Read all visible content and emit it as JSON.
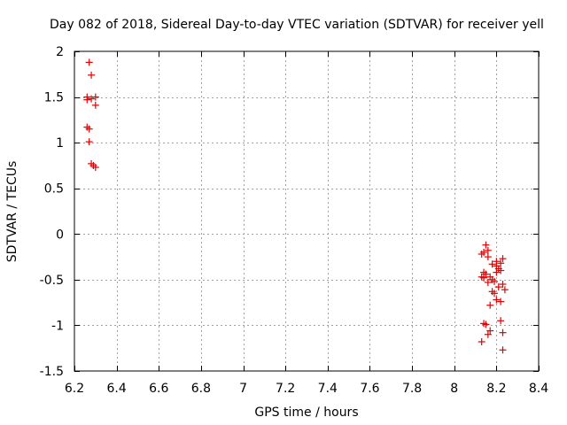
{
  "chart_data": {
    "type": "scatter",
    "title": "Day 082 of 2018, Sidereal Day-to-day VTEC variation (SDTVAR) for receiver yell",
    "xlabel": "GPS time / hours",
    "ylabel": "SDTVAR / TECUs",
    "xlim": [
      6.2,
      8.4
    ],
    "ylim": [
      -1.5,
      2
    ],
    "xticks": [
      6.2,
      6.4,
      6.6,
      6.8,
      7,
      7.2,
      7.4,
      7.6,
      7.8,
      8,
      8.2,
      8.4
    ],
    "xtick_labels": [
      "6.2",
      "6.4",
      "6.6",
      "6.8",
      "7",
      "7.2",
      "7.4",
      "7.6",
      "7.8",
      "8",
      "8.2",
      "8.4"
    ],
    "yticks": [
      -1.5,
      -1,
      -0.5,
      0,
      0.5,
      1,
      1.5,
      2
    ],
    "ytick_labels": [
      "-1.5",
      "-1",
      "-0.5",
      "0",
      "0.5",
      "1",
      "1.5",
      "2"
    ],
    "grid": true,
    "marker": "+",
    "color": "#e00000",
    "series": [
      {
        "name": "SDTVAR",
        "points": [
          [
            6.27,
            1.88
          ],
          [
            6.28,
            1.74
          ],
          [
            6.26,
            1.5
          ],
          [
            6.26,
            1.47
          ],
          [
            6.28,
            1.48
          ],
          [
            6.3,
            1.5
          ],
          [
            6.3,
            1.41
          ],
          [
            6.26,
            1.17
          ],
          [
            6.27,
            1.15
          ],
          [
            6.27,
            1.01
          ],
          [
            6.28,
            0.77
          ],
          [
            6.29,
            0.75
          ],
          [
            6.3,
            0.73
          ],
          [
            8.15,
            -0.12
          ],
          [
            8.14,
            -0.2
          ],
          [
            8.13,
            -0.22
          ],
          [
            8.16,
            -0.25
          ],
          [
            8.16,
            -0.18
          ],
          [
            8.18,
            -0.33
          ],
          [
            8.2,
            -0.3
          ],
          [
            8.23,
            -0.27
          ],
          [
            8.22,
            -0.32
          ],
          [
            8.2,
            -0.35
          ],
          [
            8.21,
            -0.38
          ],
          [
            8.22,
            -0.4
          ],
          [
            8.2,
            -0.42
          ],
          [
            8.14,
            -0.42
          ],
          [
            8.15,
            -0.44
          ],
          [
            8.13,
            -0.47
          ],
          [
            8.14,
            -0.48
          ],
          [
            8.17,
            -0.47
          ],
          [
            8.18,
            -0.5
          ],
          [
            8.19,
            -0.52
          ],
          [
            8.16,
            -0.53
          ],
          [
            8.23,
            -0.55
          ],
          [
            8.21,
            -0.58
          ],
          [
            8.24,
            -0.61
          ],
          [
            8.19,
            -0.65
          ],
          [
            8.18,
            -0.63
          ],
          [
            8.2,
            -0.72
          ],
          [
            8.22,
            -0.74
          ],
          [
            8.17,
            -0.78
          ],
          [
            8.14,
            -0.98
          ],
          [
            8.15,
            -0.99
          ],
          [
            8.22,
            -0.95
          ],
          [
            8.17,
            -1.06
          ],
          [
            8.16,
            -1.1
          ],
          [
            8.23,
            -1.08
          ],
          [
            8.13,
            -1.18
          ],
          [
            8.23,
            -1.27
          ]
        ]
      }
    ]
  }
}
